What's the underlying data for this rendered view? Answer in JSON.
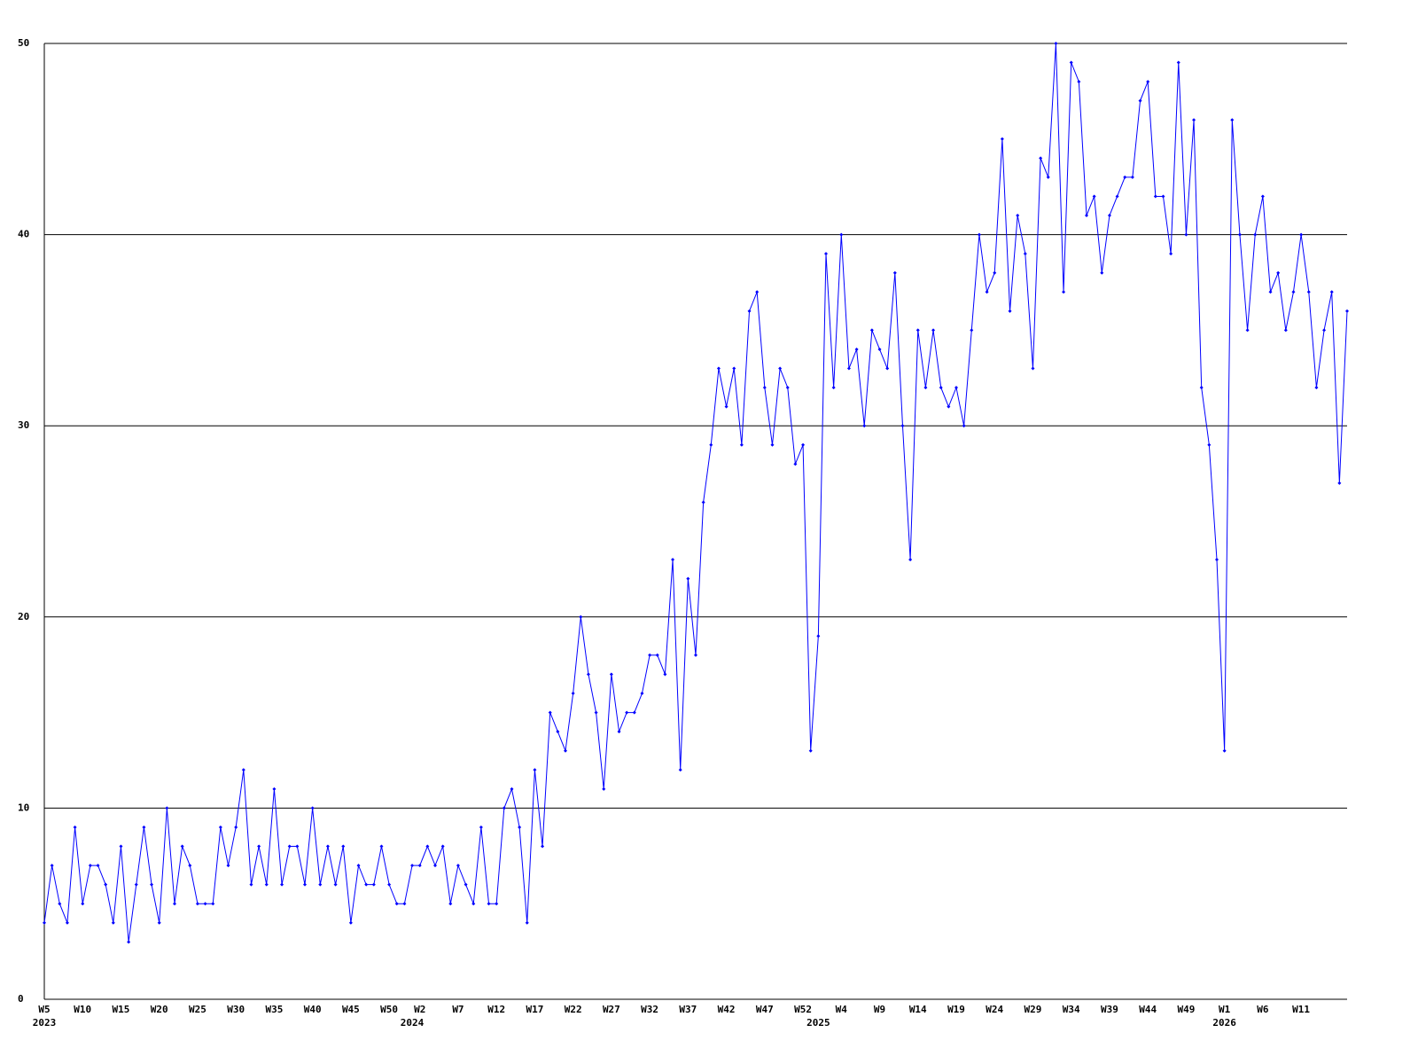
{
  "chart_data": {
    "type": "line",
    "categories": [
      "W5",
      null,
      null,
      null,
      null,
      "W10",
      null,
      null,
      null,
      null,
      "W15",
      null,
      null,
      null,
      null,
      "W20",
      null,
      null,
      null,
      null,
      "W25",
      null,
      null,
      null,
      null,
      "W30",
      null,
      null,
      null,
      null,
      "W35",
      null,
      null,
      null,
      null,
      "W40",
      null,
      null,
      null,
      null,
      "W45",
      null,
      null,
      null,
      null,
      "W50",
      null,
      null,
      null,
      "W2",
      null,
      null,
      null,
      null,
      "W7",
      null,
      null,
      null,
      null,
      "W12",
      null,
      null,
      null,
      null,
      "W17",
      null,
      null,
      null,
      null,
      "W22",
      null,
      null,
      null,
      null,
      "W27",
      null,
      null,
      null,
      null,
      "W32",
      null,
      null,
      null,
      null,
      "W37",
      null,
      null,
      null,
      null,
      "W42",
      null,
      null,
      null,
      null,
      "W47",
      null,
      null,
      null,
      null,
      "W52",
      null,
      null,
      null,
      null,
      "W4",
      null,
      null,
      null,
      null,
      "W9",
      null,
      null,
      null,
      null,
      "W14",
      null,
      null,
      null,
      null,
      "W19",
      null,
      null,
      null,
      null,
      "W24",
      null,
      null,
      null,
      null,
      "W29",
      null,
      null,
      null,
      null,
      "W34",
      null,
      null,
      null,
      null,
      "W39",
      null,
      null,
      null,
      null,
      "W44",
      null,
      null,
      null,
      null,
      "W49",
      null,
      null,
      null,
      null,
      "W1",
      null,
      null,
      null,
      null,
      "W6",
      null,
      null,
      null,
      null,
      "W11",
      null,
      null,
      null,
      null,
      null,
      null
    ],
    "years": [
      "2023",
      null,
      null,
      null,
      null,
      null,
      null,
      null,
      null,
      null,
      null,
      null,
      null,
      null,
      null,
      null,
      null,
      null,
      null,
      null,
      null,
      null,
      null,
      null,
      null,
      null,
      null,
      null,
      null,
      null,
      null,
      null,
      null,
      null,
      null,
      null,
      null,
      null,
      null,
      null,
      null,
      null,
      null,
      null,
      null,
      null,
      null,
      null,
      "2024",
      null,
      null,
      null,
      null,
      null,
      null,
      null,
      null,
      null,
      null,
      null,
      null,
      null,
      null,
      null,
      null,
      null,
      null,
      null,
      null,
      null,
      null,
      null,
      null,
      null,
      null,
      null,
      null,
      null,
      null,
      null,
      null,
      null,
      null,
      null,
      null,
      null,
      null,
      null,
      null,
      null,
      null,
      null,
      null,
      null,
      null,
      null,
      null,
      null,
      null,
      null,
      null,
      "2025",
      null,
      null,
      null,
      null,
      null,
      null,
      null,
      null,
      null,
      null,
      null,
      null,
      null,
      null,
      null,
      null,
      null,
      null,
      null,
      null,
      null,
      null,
      null,
      null,
      null,
      null,
      null,
      null,
      null,
      null,
      null,
      null,
      null,
      null,
      null,
      null,
      null,
      null,
      null,
      null,
      null,
      null,
      null,
      null,
      null,
      null,
      null,
      null,
      null,
      null,
      null,
      null,
      "2026",
      null,
      null,
      null,
      null,
      null,
      null,
      null,
      null,
      null,
      null,
      null,
      null,
      null,
      null,
      null,
      null
    ],
    "values": [
      4,
      7,
      5,
      4,
      9,
      5,
      7,
      7,
      6,
      4,
      8,
      3,
      6,
      9,
      6,
      4,
      10,
      5,
      8,
      7,
      5,
      5,
      5,
      9,
      7,
      9,
      12,
      6,
      8,
      6,
      11,
      6,
      8,
      8,
      6,
      10,
      6,
      8,
      6,
      8,
      4,
      7,
      6,
      6,
      8,
      6,
      5,
      5,
      7,
      7,
      8,
      7,
      8,
      5,
      7,
      6,
      5,
      9,
      5,
      5,
      10,
      11,
      9,
      4,
      12,
      8,
      15,
      14,
      13,
      16,
      20,
      17,
      15,
      11,
      17,
      14,
      15,
      15,
      16,
      18,
      18,
      17,
      23,
      12,
      22,
      18,
      26,
      29,
      33,
      31,
      33,
      29,
      36,
      37,
      32,
      29,
      33,
      32,
      28,
      29,
      13,
      19,
      39,
      32,
      40,
      33,
      34,
      30,
      35,
      34,
      33,
      38,
      30,
      23,
      35,
      32,
      35,
      32,
      31,
      32,
      30,
      35,
      40,
      37,
      38,
      45,
      36,
      41,
      39,
      33,
      44,
      43,
      50,
      37,
      49,
      48,
      41,
      42,
      38,
      41,
      42,
      43,
      43,
      47,
      48,
      42,
      42,
      39,
      49,
      40,
      46,
      32,
      29,
      23,
      13,
      46,
      40,
      35,
      40,
      42,
      37,
      38,
      35,
      37,
      40,
      37,
      32,
      35,
      37,
      27,
      36
    ],
    "color": "#0000ff",
    "ylim": [
      0,
      50
    ],
    "yticks": [
      0,
      10,
      20,
      30,
      40,
      50
    ],
    "grid": true
  }
}
